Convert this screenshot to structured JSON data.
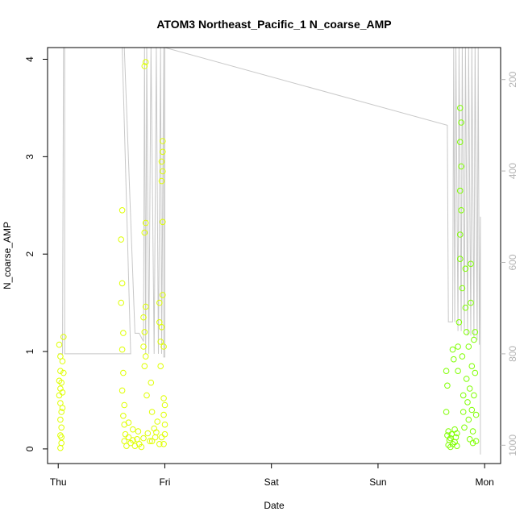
{
  "chart_data": {
    "type": "scatter",
    "title": "ATOM3 Northeast_Pacific_1 N_coarse_AMP",
    "xlabel": "Date",
    "ylabel": "N_coarse_AMP",
    "x_ticks": [
      {
        "value": 0.0,
        "label": "Thu"
      },
      {
        "value": 1.0,
        "label": "Fri"
      },
      {
        "value": 2.0,
        "label": "Sat"
      },
      {
        "value": 3.0,
        "label": "Sun"
      },
      {
        "value": 4.0,
        "label": "Mon"
      }
    ],
    "y_ticks": [
      0,
      1,
      2,
      3,
      4
    ],
    "y2_ticks": [
      200,
      400,
      600,
      800,
      1000
    ],
    "xlim": [
      -0.1,
      4.15
    ],
    "ylim": [
      -0.15,
      4.12
    ],
    "y2lim": [
      1040,
      130
    ],
    "y2_reversed": true,
    "grid": false,
    "colors": {
      "points_early": "#dfff00",
      "points_late": "#7fff00",
      "altitude_line": "#c8c8c8",
      "axis": "#000000",
      "right_axis": "#b4b4b4"
    },
    "series": [
      {
        "kind": "points",
        "values": [
          {
            "x": 0.01,
            "y": 1.07
          },
          {
            "x": 0.02,
            "y": 0.95
          },
          {
            "x": 0.02,
            "y": 0.8
          },
          {
            "x": 0.01,
            "y": 0.7
          },
          {
            "x": 0.02,
            "y": 0.62
          },
          {
            "x": 0.01,
            "y": 0.55
          },
          {
            "x": 0.02,
            "y": 0.47
          },
          {
            "x": 0.03,
            "y": 0.38
          },
          {
            "x": 0.02,
            "y": 0.3
          },
          {
            "x": 0.03,
            "y": 0.22
          },
          {
            "x": 0.02,
            "y": 0.14
          },
          {
            "x": 0.03,
            "y": 0.06
          },
          {
            "x": 0.02,
            "y": 0.01
          },
          {
            "x": 0.04,
            "y": 0.9
          },
          {
            "x": 0.03,
            "y": 0.68
          },
          {
            "x": 0.05,
            "y": 1.15
          },
          {
            "x": 0.04,
            "y": 0.58
          },
          {
            "x": 0.05,
            "y": 0.78
          },
          {
            "x": 0.04,
            "y": 0.42
          },
          {
            "x": 0.03,
            "y": 0.12
          },
          {
            "x": 0.6,
            "y": 2.45
          },
          {
            "x": 0.59,
            "y": 2.15
          },
          {
            "x": 0.6,
            "y": 1.7
          },
          {
            "x": 0.59,
            "y": 1.5
          },
          {
            "x": 0.61,
            "y": 1.19
          },
          {
            "x": 0.6,
            "y": 1.02
          },
          {
            "x": 0.61,
            "y": 0.78
          },
          {
            "x": 0.6,
            "y": 0.6
          },
          {
            "x": 0.62,
            "y": 0.45
          },
          {
            "x": 0.61,
            "y": 0.34
          },
          {
            "x": 0.62,
            "y": 0.25
          },
          {
            "x": 0.63,
            "y": 0.15
          },
          {
            "x": 0.62,
            "y": 0.08
          },
          {
            "x": 0.64,
            "y": 0.03
          },
          {
            "x": 0.66,
            "y": 0.12
          },
          {
            "x": 0.68,
            "y": 0.06
          },
          {
            "x": 0.7,
            "y": 0.09
          },
          {
            "x": 0.72,
            "y": 0.03
          },
          {
            "x": 0.74,
            "y": 0.1
          },
          {
            "x": 0.76,
            "y": 0.05
          },
          {
            "x": 0.78,
            "y": 0.02
          },
          {
            "x": 0.8,
            "y": 0.11
          },
          {
            "x": 0.8,
            "y": 1.35
          },
          {
            "x": 0.81,
            "y": 1.2
          },
          {
            "x": 0.8,
            "y": 1.05
          },
          {
            "x": 0.82,
            "y": 0.95
          },
          {
            "x": 0.81,
            "y": 0.85
          },
          {
            "x": 0.82,
            "y": 1.46
          },
          {
            "x": 0.81,
            "y": 2.22
          },
          {
            "x": 0.82,
            "y": 2.32
          },
          {
            "x": 0.81,
            "y": 3.93
          },
          {
            "x": 0.82,
            "y": 3.97
          },
          {
            "x": 0.83,
            "y": 0.55
          },
          {
            "x": 0.84,
            "y": 0.16
          },
          {
            "x": 0.86,
            "y": 0.08
          },
          {
            "x": 0.87,
            "y": 0.68
          },
          {
            "x": 0.88,
            "y": 0.38
          },
          {
            "x": 0.9,
            "y": 0.21
          },
          {
            "x": 0.91,
            "y": 0.12
          },
          {
            "x": 0.93,
            "y": 0.28
          },
          {
            "x": 0.95,
            "y": 0.05
          },
          {
            "x": 0.95,
            "y": 1.3
          },
          {
            "x": 0.95,
            "y": 1.5
          },
          {
            "x": 0.96,
            "y": 1.1
          },
          {
            "x": 0.96,
            "y": 0.85
          },
          {
            "x": 0.97,
            "y": 1.25
          },
          {
            "x": 0.97,
            "y": 0.12
          },
          {
            "x": 0.98,
            "y": 3.16
          },
          {
            "x": 0.98,
            "y": 3.05
          },
          {
            "x": 0.97,
            "y": 2.95
          },
          {
            "x": 0.98,
            "y": 2.85
          },
          {
            "x": 0.97,
            "y": 2.75
          },
          {
            "x": 0.98,
            "y": 2.33
          },
          {
            "x": 0.98,
            "y": 1.58
          },
          {
            "x": 0.99,
            "y": 1.05
          },
          {
            "x": 0.99,
            "y": 0.52
          },
          {
            "x": 1.0,
            "y": 0.45
          },
          {
            "x": 0.99,
            "y": 0.35
          },
          {
            "x": 1.0,
            "y": 0.25
          },
          {
            "x": 1.0,
            "y": 0.15
          },
          {
            "x": 0.99,
            "y": 0.05
          },
          {
            "x": 0.7,
            "y": 0.2
          },
          {
            "x": 0.75,
            "y": 0.18
          },
          {
            "x": 0.66,
            "y": 0.27
          },
          {
            "x": 0.88,
            "y": 0.08
          },
          {
            "x": 0.92,
            "y": 0.17
          }
        ]
      },
      {
        "kind": "points",
        "values": [
          {
            "x": 3.64,
            "y": 0.8
          },
          {
            "x": 3.65,
            "y": 0.65
          },
          {
            "x": 3.64,
            "y": 0.38
          },
          {
            "x": 3.65,
            "y": 0.14
          },
          {
            "x": 3.66,
            "y": 0.04
          },
          {
            "x": 3.67,
            "y": 0.09
          },
          {
            "x": 3.68,
            "y": 0.02
          },
          {
            "x": 3.69,
            "y": 0.15
          },
          {
            "x": 3.7,
            "y": 0.05
          },
          {
            "x": 3.7,
            "y": 1.02
          },
          {
            "x": 3.71,
            "y": 0.92
          },
          {
            "x": 3.72,
            "y": 0.07
          },
          {
            "x": 3.73,
            "y": 0.12
          },
          {
            "x": 3.74,
            "y": 0.03
          },
          {
            "x": 3.75,
            "y": 0.8
          },
          {
            "x": 3.75,
            "y": 1.05
          },
          {
            "x": 3.76,
            "y": 1.3
          },
          {
            "x": 3.77,
            "y": 1.95
          },
          {
            "x": 3.77,
            "y": 2.2
          },
          {
            "x": 3.78,
            "y": 2.45
          },
          {
            "x": 3.77,
            "y": 2.65
          },
          {
            "x": 3.78,
            "y": 2.9
          },
          {
            "x": 3.77,
            "y": 3.15
          },
          {
            "x": 3.78,
            "y": 3.35
          },
          {
            "x": 3.77,
            "y": 3.5
          },
          {
            "x": 3.79,
            "y": 1.65
          },
          {
            "x": 3.79,
            "y": 0.95
          },
          {
            "x": 3.8,
            "y": 0.55
          },
          {
            "x": 3.8,
            "y": 0.38
          },
          {
            "x": 3.81,
            "y": 0.22
          },
          {
            "x": 3.82,
            "y": 1.85
          },
          {
            "x": 3.82,
            "y": 1.45
          },
          {
            "x": 3.83,
            "y": 1.2
          },
          {
            "x": 3.83,
            "y": 0.72
          },
          {
            "x": 3.84,
            "y": 0.48
          },
          {
            "x": 3.85,
            "y": 0.3
          },
          {
            "x": 3.85,
            "y": 1.05
          },
          {
            "x": 3.86,
            "y": 0.62
          },
          {
            "x": 3.87,
            "y": 1.5
          },
          {
            "x": 3.87,
            "y": 1.9
          },
          {
            "x": 3.88,
            "y": 0.85
          },
          {
            "x": 3.88,
            "y": 0.4
          },
          {
            "x": 3.89,
            "y": 0.18
          },
          {
            "x": 3.9,
            "y": 0.55
          },
          {
            "x": 3.9,
            "y": 1.12
          },
          {
            "x": 3.91,
            "y": 0.78
          },
          {
            "x": 3.91,
            "y": 1.2
          },
          {
            "x": 3.92,
            "y": 0.35
          },
          {
            "x": 3.92,
            "y": 0.08
          },
          {
            "x": 3.66,
            "y": 0.18
          },
          {
            "x": 3.68,
            "y": 0.11
          },
          {
            "x": 3.72,
            "y": 0.2
          },
          {
            "x": 3.74,
            "y": 0.16
          },
          {
            "x": 3.86,
            "y": 0.1
          },
          {
            "x": 3.89,
            "y": 0.06
          }
        ]
      },
      {
        "kind": "line",
        "axis": "right",
        "values": [
          {
            "x": 0.0,
            "y": 800
          },
          {
            "x": 0.04,
            "y": 800
          },
          {
            "x": 0.05,
            "y": 130
          },
          {
            "x": 0.06,
            "y": 130
          },
          {
            "x": 0.06,
            "y": 800
          },
          {
            "x": 0.68,
            "y": 800
          },
          {
            "x": 0.6,
            "y": 130
          },
          {
            "x": 0.62,
            "y": 130
          },
          {
            "x": 0.72,
            "y": 755
          },
          {
            "x": 0.76,
            "y": 755
          },
          {
            "x": 0.8,
            "y": 773
          },
          {
            "x": 0.81,
            "y": 130
          },
          {
            "x": 0.82,
            "y": 800
          },
          {
            "x": 0.83,
            "y": 130
          },
          {
            "x": 0.85,
            "y": 800
          },
          {
            "x": 0.87,
            "y": 130
          },
          {
            "x": 0.9,
            "y": 800
          },
          {
            "x": 0.92,
            "y": 130
          },
          {
            "x": 0.94,
            "y": 800
          },
          {
            "x": 0.96,
            "y": 130
          },
          {
            "x": 0.97,
            "y": 800
          },
          {
            "x": 0.99,
            "y": 130
          },
          {
            "x": 0.99,
            "y": 807
          },
          {
            "x": 1.0,
            "y": 807
          },
          {
            "x": 1.0,
            "y": 130
          },
          {
            "x": 3.65,
            "y": 300
          },
          {
            "x": 3.66,
            "y": 730
          },
          {
            "x": 3.7,
            "y": 730
          },
          {
            "x": 3.71,
            "y": 130
          },
          {
            "x": 3.72,
            "y": 730
          },
          {
            "x": 3.73,
            "y": 130
          },
          {
            "x": 3.75,
            "y": 750
          },
          {
            "x": 3.76,
            "y": 130
          },
          {
            "x": 3.78,
            "y": 750
          },
          {
            "x": 3.79,
            "y": 130
          },
          {
            "x": 3.81,
            "y": 750
          },
          {
            "x": 3.82,
            "y": 130
          },
          {
            "x": 3.84,
            "y": 760
          },
          {
            "x": 3.85,
            "y": 130
          },
          {
            "x": 3.87,
            "y": 760
          },
          {
            "x": 3.88,
            "y": 130
          },
          {
            "x": 3.9,
            "y": 765
          },
          {
            "x": 3.91,
            "y": 130
          },
          {
            "x": 3.93,
            "y": 770
          },
          {
            "x": 3.94,
            "y": 130
          },
          {
            "x": 3.95,
            "y": 780
          },
          {
            "x": 3.96,
            "y": 500
          },
          {
            "x": 3.96,
            "y": 1020
          }
        ]
      }
    ]
  }
}
